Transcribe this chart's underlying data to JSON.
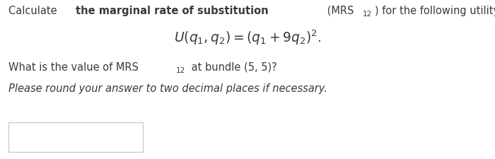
{
  "bg_color": "#ffffff",
  "text_color": "#3a3a3a",
  "font_size_main": 10.5,
  "font_size_formula": 13.5,
  "font_size_sub": 7.5,
  "font_size_italic": 10.5,
  "line1_parts": [
    {
      "text": "Calculate ",
      "bold": false,
      "italic": false
    },
    {
      "text": "the marginal rate of substitution",
      "bold": true,
      "italic": false
    },
    {
      "text": " (MRS",
      "bold": false,
      "italic": false
    },
    {
      "text": "12",
      "bold": false,
      "italic": false,
      "sub": true
    },
    {
      "text": ") for the following utility function:",
      "bold": false,
      "italic": false
    }
  ],
  "formula_tex": "$U(q_1, q_2) = (q_1 + 9q_2)^2.$",
  "line3_parts": [
    {
      "text": "What is the value of MRS",
      "bold": false,
      "italic": false
    },
    {
      "text": "12",
      "bold": false,
      "italic": false,
      "sub": true
    },
    {
      "text": " at bundle (5, 5)?",
      "bold": false,
      "italic": false
    }
  ],
  "line4": "Please round your answer to two decimal places if necessary.",
  "box_color": "#cccccc",
  "box_facecolor": "#ffffff"
}
